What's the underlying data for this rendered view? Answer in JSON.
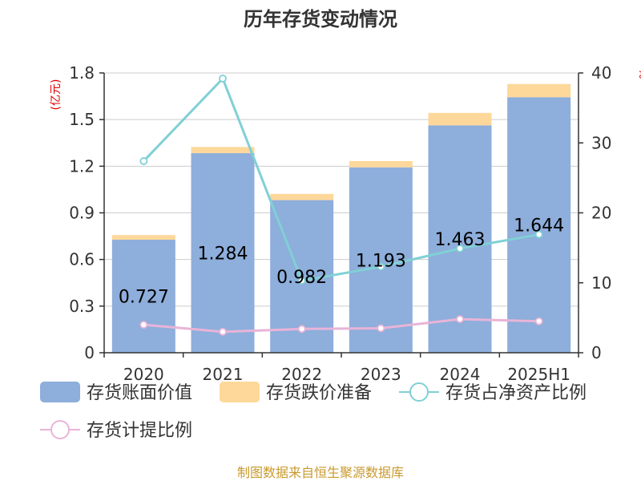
{
  "chart_data": {
    "type": "bar",
    "title": "历年存货变动情况",
    "left_axis_unit": "(亿元)",
    "right_axis_unit": "%",
    "categories": [
      "2020",
      "2021",
      "2022",
      "2023",
      "2024",
      "2025H1"
    ],
    "left_axis": {
      "min": 0,
      "max": 1.8,
      "ticks": [
        "0",
        "0.3",
        "0.6",
        "0.9",
        "1.2",
        "1.5",
        "1.8"
      ]
    },
    "right_axis": {
      "min": 0,
      "max": 40,
      "ticks": [
        "0",
        "10",
        "20",
        "30",
        "40"
      ]
    },
    "stacked": true,
    "grid": true,
    "legend_position": "bottom",
    "series": [
      {
        "name": "存货账面价值",
        "kind": "bar",
        "axis": "left",
        "color": "#8eaedb",
        "values": [
          0.727,
          1.284,
          0.982,
          1.193,
          1.463,
          1.644
        ],
        "labels": [
          "0.727",
          "1.284",
          "0.982",
          "1.193",
          "1.463",
          "1.644"
        ]
      },
      {
        "name": "存货跌价准备",
        "kind": "bar",
        "axis": "left",
        "color": "#fdd89a",
        "values": [
          0.03,
          0.04,
          0.04,
          0.04,
          0.08,
          0.085
        ]
      },
      {
        "name": "存货占净资产比例",
        "kind": "line",
        "axis": "right",
        "color": "#80d0d6",
        "values": [
          27.4,
          39.2,
          10.3,
          12.3,
          14.9,
          16.9
        ]
      },
      {
        "name": "存货计提比例",
        "kind": "line",
        "axis": "right",
        "color": "#e8b4d8",
        "values": [
          4.0,
          3.0,
          3.4,
          3.5,
          4.8,
          4.5
        ]
      }
    ]
  },
  "footer": {
    "source": "制图数据来自恒生聚源数据库"
  }
}
